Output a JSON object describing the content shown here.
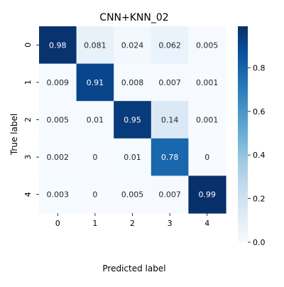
{
  "chart_data": {
    "type": "heatmap",
    "title": "CNN+KNN_02",
    "xlabel": "Predicted label",
    "ylabel": "True label",
    "x_categories": [
      "0",
      "1",
      "2",
      "3",
      "4"
    ],
    "y_categories": [
      "0",
      "1",
      "2",
      "3",
      "4"
    ],
    "values": [
      [
        0.98,
        0.081,
        0.024,
        0.062,
        0.005
      ],
      [
        0.009,
        0.91,
        0.008,
        0.007,
        0.001
      ],
      [
        0.005,
        0.01,
        0.95,
        0.14,
        0.001
      ],
      [
        0.002,
        0,
        0.01,
        0.78,
        0
      ],
      [
        0.003,
        0,
        0.005,
        0.007,
        0.99
      ]
    ],
    "cell_labels": [
      [
        "0.98",
        "0.081",
        "0.024",
        "0.062",
        "0.005"
      ],
      [
        "0.009",
        "0.91",
        "0.008",
        "0.007",
        "0.001"
      ],
      [
        "0.005",
        "0.01",
        "0.95",
        "0.14",
        "0.001"
      ],
      [
        "0.002",
        "0",
        "0.01",
        "0.78",
        "0"
      ],
      [
        "0.003",
        "0",
        "0.005",
        "0.007",
        "0.99"
      ]
    ],
    "colormap": "Blues",
    "color_low": "#f7fbff",
    "color_high": "#08306b",
    "colorbar": {
      "range": [
        0,
        0.99
      ],
      "ticks": [
        0.0,
        0.2,
        0.4,
        0.6,
        0.8
      ],
      "tick_labels": [
        "0.0",
        "0.2",
        "0.4",
        "0.6",
        "0.8"
      ]
    }
  }
}
